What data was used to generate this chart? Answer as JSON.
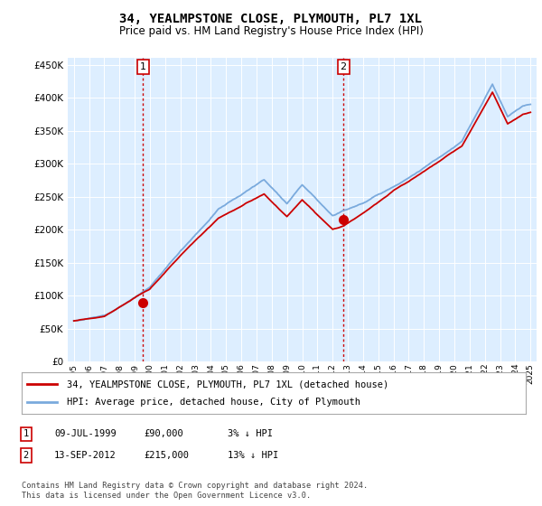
{
  "title": "34, YEALMPSTONE CLOSE, PLYMOUTH, PL7 1XL",
  "subtitle": "Price paid vs. HM Land Registry's House Price Index (HPI)",
  "legend_line1": "34, YEALMPSTONE CLOSE, PLYMOUTH, PL7 1XL (detached house)",
  "legend_line2": "HPI: Average price, detached house, City of Plymouth",
  "annotation1_date": "09-JUL-1999",
  "annotation1_price": "£90,000",
  "annotation1_hpi": "3% ↓ HPI",
  "annotation2_date": "13-SEP-2012",
  "annotation2_price": "£215,000",
  "annotation2_hpi": "13% ↓ HPI",
  "footer": "Contains HM Land Registry data © Crown copyright and database right 2024.\nThis data is licensed under the Open Government Licence v3.0.",
  "red_color": "#cc0000",
  "blue_color": "#7aaadd",
  "bg_color": "#ddeeff",
  "purchase1_x": 1999.54,
  "purchase1_y": 90000,
  "purchase2_x": 2012.71,
  "purchase2_y": 215000,
  "ylim": [
    0,
    460000
  ],
  "yticks": [
    0,
    50000,
    100000,
    150000,
    200000,
    250000,
    300000,
    350000,
    400000,
    450000
  ],
  "xlim_lo": 1994.6,
  "xlim_hi": 2025.4
}
